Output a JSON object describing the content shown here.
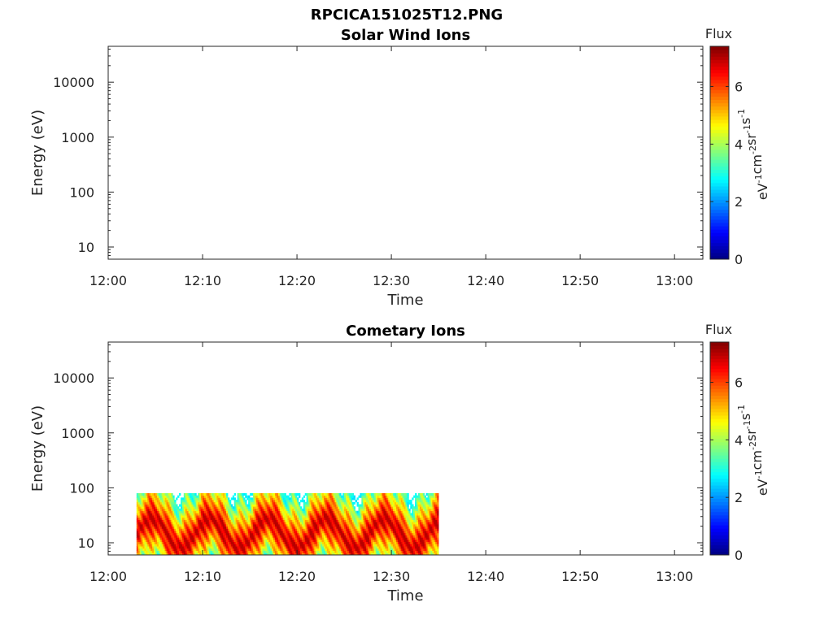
{
  "figure_title": "RPCICA151025T12.PNG",
  "chart_data": [
    {
      "type": "heatmap",
      "title": "Solar Wind Ions",
      "xlabel": "Time",
      "ylabel": "Energy (eV)",
      "x_ticks": [
        "12:00",
        "12:10",
        "12:20",
        "12:30",
        "12:40",
        "12:50",
        "13:00"
      ],
      "xlim": [
        "12:00",
        "13:03"
      ],
      "y_scale": "log",
      "y_ticks": [
        10,
        100,
        1000,
        10000
      ],
      "y_tick_labels": [
        "10",
        "100",
        "1000",
        "10000"
      ],
      "ylim": [
        6,
        45000
      ],
      "colorbar": {
        "title": "Flux",
        "label_parts": [
          "eV",
          "-1",
          "cm",
          "-2",
          "sr",
          "-1",
          "s",
          "-1"
        ],
        "ticks": [
          0,
          2,
          4,
          6
        ],
        "tick_labels": [
          "0",
          "2",
          "4",
          "6"
        ],
        "range": [
          0,
          7.4
        ],
        "colormap": "jet"
      },
      "data_blocks": []
    },
    {
      "type": "heatmap",
      "title": "Cometary Ions",
      "xlabel": "Time",
      "ylabel": "Energy (eV)",
      "x_ticks": [
        "12:00",
        "12:10",
        "12:20",
        "12:30",
        "12:40",
        "12:50",
        "13:00"
      ],
      "xlim": [
        "12:00",
        "13:03"
      ],
      "y_scale": "log",
      "y_ticks": [
        10,
        100,
        1000,
        10000
      ],
      "y_tick_labels": [
        "10",
        "100",
        "1000",
        "10000"
      ],
      "ylim": [
        6,
        45000
      ],
      "colorbar": {
        "title": "Flux",
        "label_parts": [
          "eV",
          "-1",
          "cm",
          "-2",
          "sr",
          "-1",
          "s",
          "-1"
        ],
        "ticks": [
          0,
          2,
          4,
          6
        ],
        "tick_labels": [
          "0",
          "2",
          "4",
          "6"
        ],
        "range": [
          0,
          7.4
        ],
        "colormap": "jet"
      },
      "data_blocks": [
        {
          "t_start": "12:03",
          "t_end": "12:35",
          "e_min": 6,
          "e_max": 80,
          "flux_min": 2.5,
          "flux_max": 7.0
        }
      ]
    }
  ]
}
